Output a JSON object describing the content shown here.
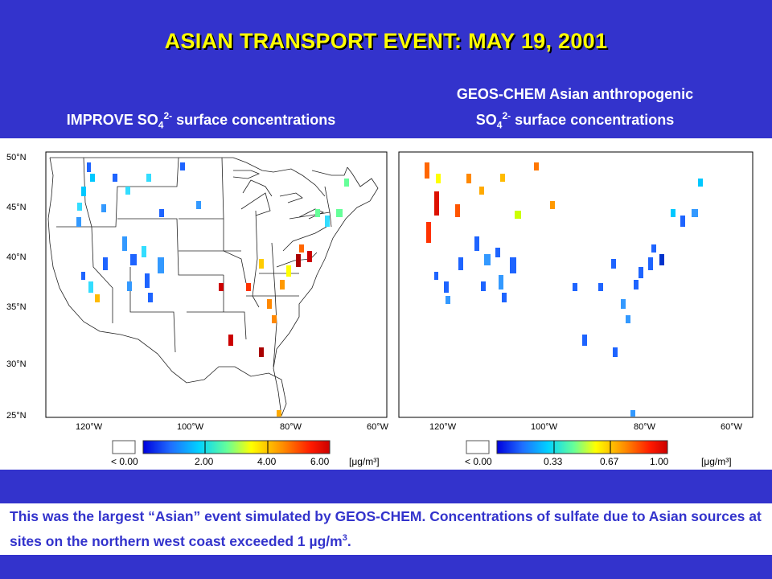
{
  "title": "ASIAN TRANSPORT EVENT: MAY 19, 2001",
  "left_panel": {
    "subtitle_pre": "IMPROVE SO",
    "subtitle_sub": "4",
    "subtitle_sup": "2-",
    "subtitle_post": " surface concentrations",
    "colorbar_ticks": [
      "< 0.00",
      "2.00",
      "4.00",
      "6.00"
    ],
    "units": "[μg/m³]"
  },
  "right_panel": {
    "subtitle_line1": "GEOS-CHEM Asian anthropogenic",
    "subtitle_pre": "SO",
    "subtitle_sub": "4",
    "subtitle_sup": "2-",
    "subtitle_post": " surface concentrations",
    "colorbar_ticks": [
      "< 0.00",
      "0.33",
      "0.67",
      "1.00"
    ],
    "units": "[μg/m³]"
  },
  "lat_labels": [
    "50°N",
    "45°N",
    "40°N",
    "35°N",
    "30°N",
    "25°N"
  ],
  "lon_labels": [
    "120°W",
    "100°W",
    "80°W",
    "60°W"
  ],
  "caption_main": "This was the largest “Asian” event simulated by GEOS-CHEM. Concentrations of sulfate due to Asian sources at sites on the northern west coast exceeded 1 µg/m",
  "caption_sup": "3",
  "caption_end": ".",
  "colors": {
    "background": "#3333cc",
    "title": "#ffff00"
  }
}
